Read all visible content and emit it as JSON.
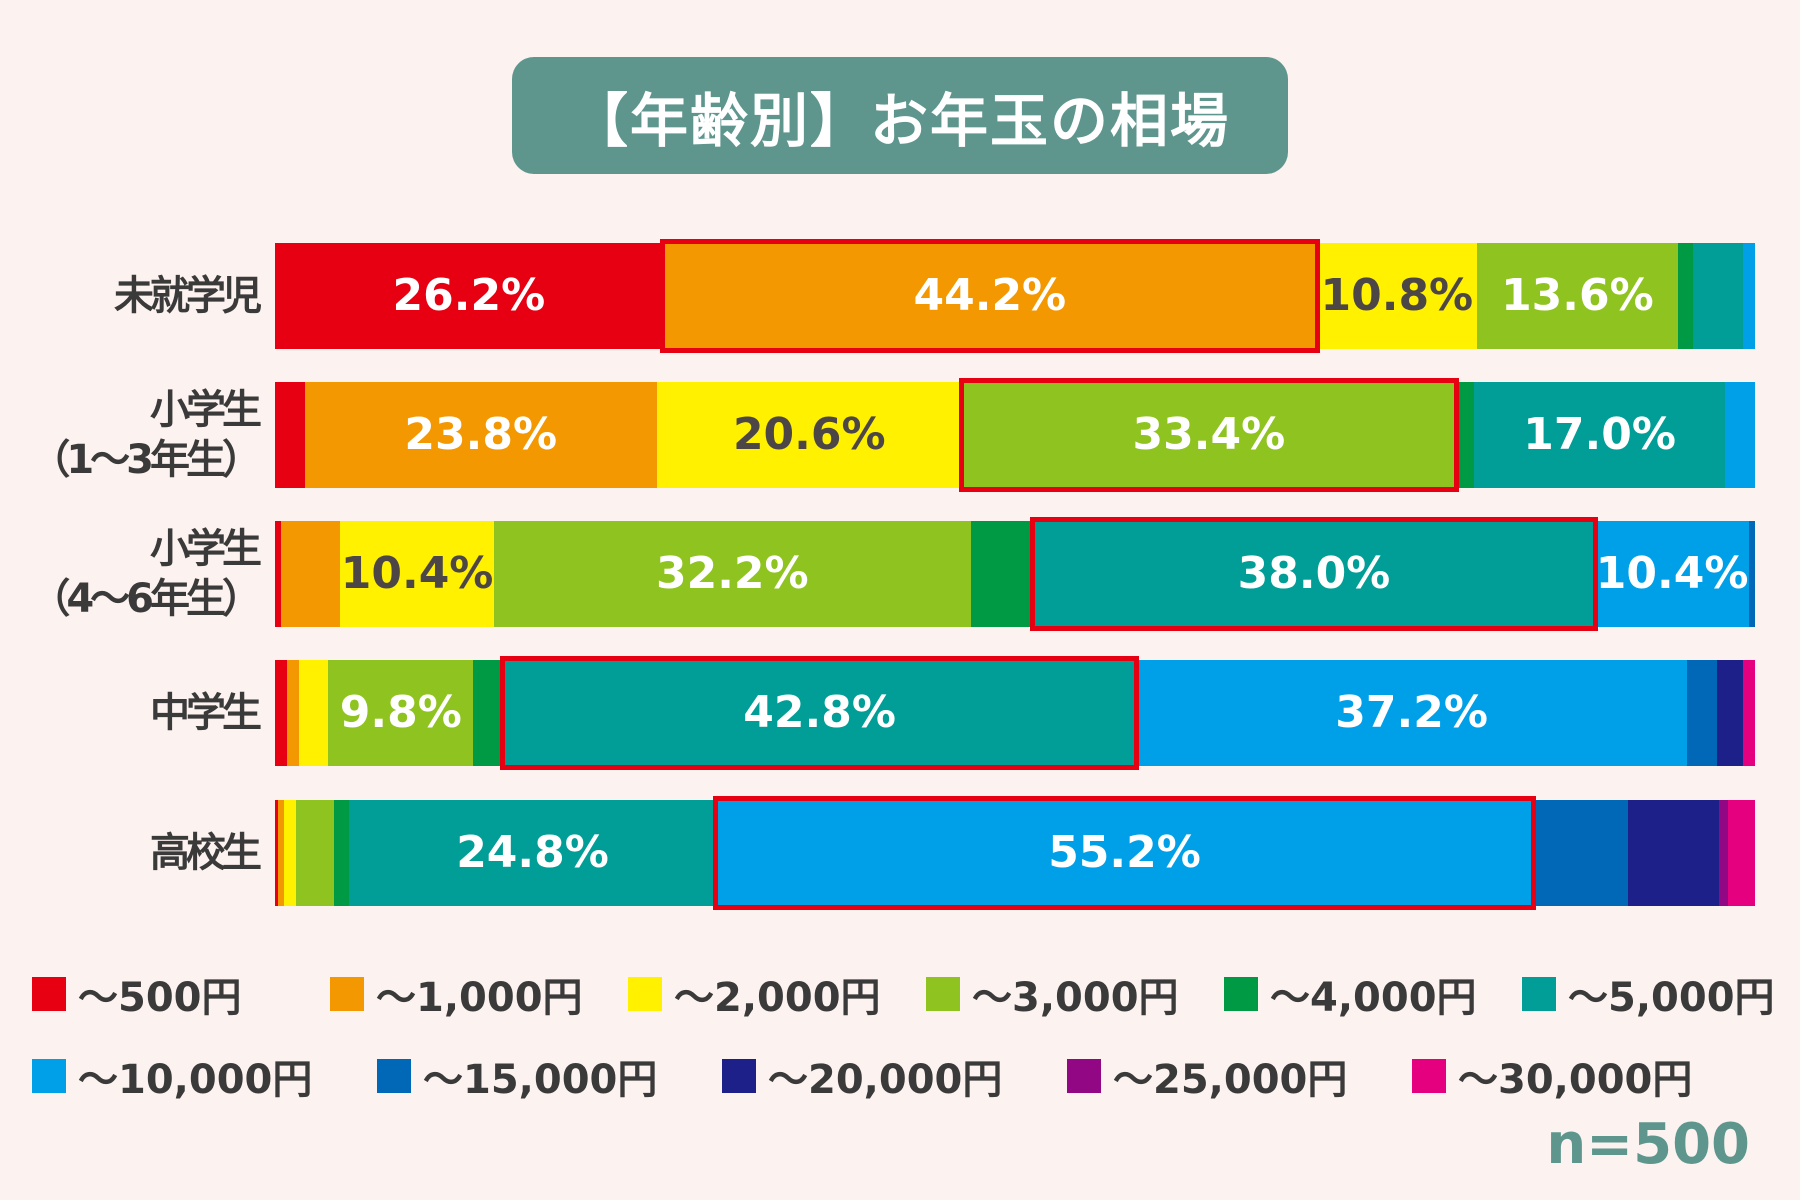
{
  "chart_data": {
    "type": "stacked-bar-horizontal",
    "title": "【年齢別】お年玉の相場",
    "categories": [
      "未就学児",
      "小学生\n（1〜3年生）",
      "小学生\n（4〜6年生）",
      "中学生",
      "高校生"
    ],
    "legend": [
      "〜500円",
      "〜1,000円",
      "〜2,000円",
      "〜3,000円",
      "〜4,000円",
      "〜5,000円",
      "〜10,000円",
      "〜15,000円",
      "〜20,000円",
      "〜25,000円",
      "〜30,000円"
    ],
    "colors": [
      "#e60012",
      "#f39800",
      "#fff100",
      "#8fc31f",
      "#009944",
      "#009e96",
      "#00a0e9",
      "#0068b7",
      "#1d2088",
      "#920783",
      "#e4007f"
    ],
    "series_values": [
      [
        26.2,
        44.2,
        10.8,
        13.6,
        1.0,
        3.4,
        0.8,
        0,
        0,
        0,
        0
      ],
      [
        2.0,
        23.8,
        20.6,
        33.4,
        1.2,
        17.0,
        2.0,
        0,
        0,
        0,
        0
      ],
      [
        0.4,
        4.0,
        10.4,
        32.2,
        4.2,
        38.0,
        10.4,
        0.4,
        0,
        0,
        0
      ],
      [
        0.8,
        0.8,
        2.0,
        9.8,
        2.0,
        42.8,
        37.2,
        2.0,
        1.8,
        0,
        0.8
      ],
      [
        0.2,
        0.4,
        0.8,
        2.6,
        1.0,
        24.8,
        55.2,
        6.4,
        6.2,
        0.6,
        1.8
      ]
    ],
    "data_labels": [
      [
        "26.2%",
        "44.2%",
        "10.8%",
        "13.6%",
        "",
        "",
        "",
        "",
        "",
        "",
        ""
      ],
      [
        "",
        "23.8%",
        "20.6%",
        "33.4%",
        "",
        "17.0%",
        "",
        "",
        "",
        "",
        ""
      ],
      [
        "",
        "",
        "10.4%",
        "32.2%",
        "",
        "38.0%",
        "10.4%",
        "",
        "",
        "",
        ""
      ],
      [
        "",
        "",
        "",
        "9.8%",
        "",
        "42.8%",
        "37.2%",
        "",
        "",
        "",
        ""
      ],
      [
        "",
        "",
        "",
        "",
        "",
        "24.8%",
        "55.2%",
        "",
        "",
        "",
        ""
      ]
    ],
    "highlighted_segment": [
      1,
      3,
      5,
      5,
      6
    ],
    "xlim": [
      0,
      100
    ],
    "legend_position": "bottom",
    "note": "n=500"
  }
}
